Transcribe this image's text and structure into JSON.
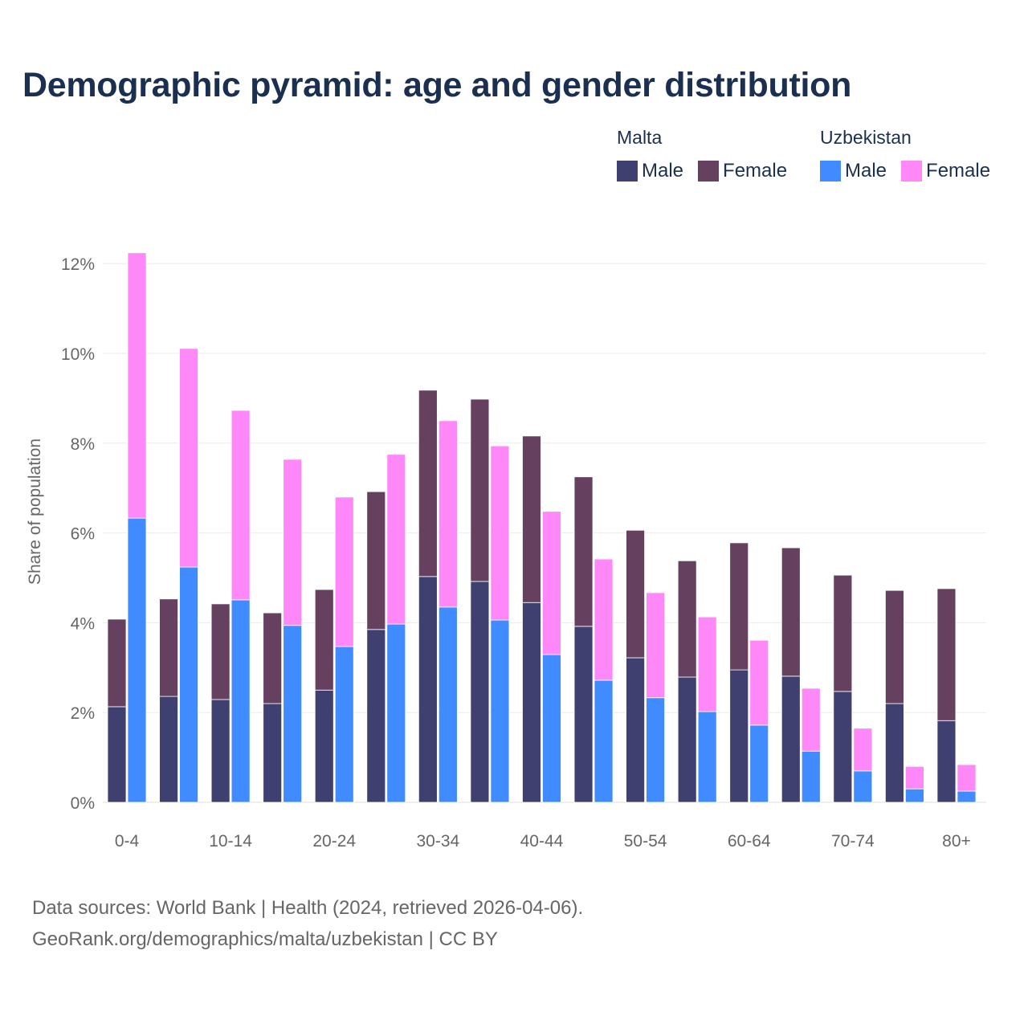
{
  "chart_data": {
    "type": "bar",
    "title": "Demographic pyramid: age and gender distribution",
    "xlabel": "",
    "ylabel": "Share of population",
    "ylim": [
      0,
      12.5
    ],
    "yticks": [
      0,
      2,
      4,
      6,
      8,
      10,
      12
    ],
    "ytick_labels": [
      "0%",
      "2%",
      "4%",
      "6%",
      "8%",
      "10%",
      "12%"
    ],
    "categories": [
      "0-4",
      "5-9",
      "10-14",
      "15-19",
      "20-24",
      "25-29",
      "30-34",
      "35-39",
      "40-44",
      "45-49",
      "50-54",
      "55-59",
      "60-64",
      "65-69",
      "70-74",
      "75-79",
      "80+"
    ],
    "xtick_labels": [
      "0-4",
      "",
      "10-14",
      "",
      "20-24",
      "",
      "30-34",
      "",
      "40-44",
      "",
      "50-54",
      "",
      "60-64",
      "",
      "70-74",
      "",
      "80+"
    ],
    "stacked": true,
    "grid": true,
    "legend_position": "top-right",
    "groups": [
      {
        "name": "Malta",
        "series": [
          {
            "name": "Male",
            "color": "#3f3f70",
            "values": [
              2.13,
              2.36,
              2.29,
              2.2,
              2.5,
              3.85,
              5.03,
              4.92,
              4.45,
              3.92,
              3.22,
              2.79,
              2.95,
              2.81,
              2.47,
              2.2,
              1.82
            ]
          },
          {
            "name": "Female",
            "color": "#65405f",
            "values": [
              1.95,
              2.17,
              2.13,
              2.02,
              2.24,
              3.07,
              4.15,
              4.06,
              3.71,
              3.33,
              2.84,
              2.59,
              2.83,
              2.86,
              2.59,
              2.52,
              2.94
            ]
          }
        ]
      },
      {
        "name": "Uzbekistan",
        "series": [
          {
            "name": "Male",
            "color": "#3f8bff",
            "values": [
              6.33,
              5.24,
              4.51,
              3.94,
              3.47,
              3.97,
              4.35,
              4.06,
              3.29,
              2.72,
              2.33,
              2.02,
              1.72,
              1.14,
              0.7,
              0.3,
              0.25
            ]
          },
          {
            "name": "Female",
            "color": "#ff88f8",
            "values": [
              5.91,
              4.87,
              4.22,
              3.7,
              3.33,
              3.78,
              4.15,
              3.88,
              3.19,
              2.7,
              2.34,
              2.11,
              1.89,
              1.4,
              0.95,
              0.5,
              0.59
            ]
          }
        ]
      }
    ]
  },
  "footer": {
    "source": "Data sources: World Bank | Health (2024, retrieved 2026-04-06).",
    "link": "GeoRank.org/demographics/malta/uzbekistan | CC BY"
  }
}
